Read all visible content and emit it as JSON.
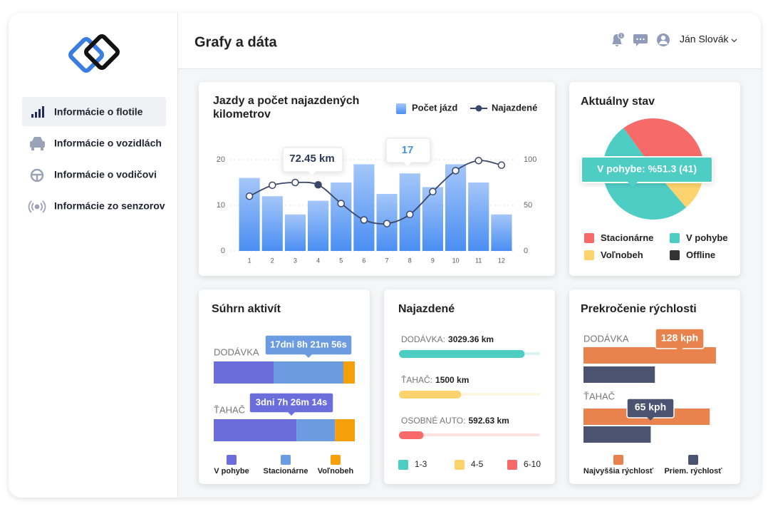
{
  "header": {
    "title": "Grafy a dáta",
    "user": "Ján Slovák",
    "notifications": 1
  },
  "sidebar": {
    "menu": [
      "Informácie o flotile",
      "Informácie o vozidlách",
      "Informácie o vodičovi",
      "Informácie zo senzorov"
    ]
  },
  "chart_data": [
    {
      "type": "bar",
      "title": "Jazdy a počet najazdených kilometrov",
      "categories": [
        "1",
        "2",
        "3",
        "4",
        "5",
        "6",
        "7",
        "8",
        "9",
        "10",
        "11",
        "12"
      ],
      "series": [
        {
          "name": "Počet jázd",
          "color": "#4a8ef2",
          "values": [
            16,
            12,
            8,
            11,
            15,
            19,
            12.5,
            17,
            14,
            19,
            15,
            8
          ]
        },
        {
          "name": "Najazdené",
          "type": "line",
          "axis": "y2",
          "color": "#3b4766",
          "values": [
            60,
            72,
            75,
            72.45,
            52,
            34,
            30,
            40,
            65,
            88,
            99,
            94
          ],
          "value_labels": [
            null,
            null,
            null,
            "72.45 km",
            null,
            null,
            null,
            null,
            null,
            null,
            null,
            null
          ]
        }
      ],
      "ylim": [
        0,
        20
      ],
      "yticks": [
        0,
        10,
        20
      ],
      "y2lim": [
        0,
        100
      ],
      "y2ticks": [
        0,
        50,
        100
      ],
      "grid": true
    },
    {
      "type": "pie",
      "title": "Aktuálny stav",
      "categories": [
        "Stacionárne",
        "V pohybe",
        "Voľnobeh",
        "Offline"
      ],
      "values": [
        28,
        41,
        10,
        1
      ],
      "value_labels": [
        null,
        "V pohybe: %51.3 (41)",
        null,
        null
      ],
      "colors": [
        "#f76a6a",
        "#4ecdc4",
        "#fdd36e",
        "#333333"
      ]
    },
    {
      "type": "bar",
      "orientation": "horizontal",
      "stack": "percent",
      "title": "Súhrn aktivít",
      "categories": [
        "DODÁVKA",
        "ŤAHAČ"
      ],
      "series": [
        {
          "name": "V pohybe",
          "color": "#6a6ddb",
          "values": [
            357,
            79.4372
          ],
          "value_labels": [
            null,
            "3dni 7h 26m 14s"
          ]
        },
        {
          "name": "Stacionárne",
          "color": "#6b9be0",
          "values": [
            416.3656,
            37
          ],
          "value_labels": [
            "17dni 8h 21m 56s",
            null
          ]
        },
        {
          "name": "Voľnobeh",
          "color": "#f59f0b",
          "values": [
            68,
            19
          ]
        }
      ]
    },
    {
      "type": "progress",
      "title": "Najazdené",
      "categories": [
        "DODÁVKA:",
        "ŤAHAČ:",
        "OSOBNÉ AUTO:"
      ],
      "values": [
        3029.36,
        1500,
        592.63
      ],
      "value_labels": [
        "3029.36 km",
        "1500 km",
        "592.63 km"
      ],
      "colors": [
        "#4ecdc4",
        "#fdd36e",
        "#f76a6a"
      ],
      "xlim": [
        0,
        3400
      ],
      "legend": [
        {
          "name": "1-3",
          "color": "#4ecdc4"
        },
        {
          "name": "4-5",
          "color": "#fdd36e"
        },
        {
          "name": "6-10",
          "color": "#f76a6a"
        }
      ]
    },
    {
      "type": "bar",
      "orientation": "horizontal",
      "title": "Prekročenie rýchlosti",
      "categories": [
        "DODÁVKA",
        "ŤAHAČ"
      ],
      "series": [
        {
          "name": "Najvyššia rýchlosť",
          "color": "#e8834e",
          "values": [
            128,
            122
          ],
          "value_labels": [
            "128 kph",
            null
          ]
        },
        {
          "name": "Priem. rýchlosť",
          "color": "#4a5470",
          "values": [
            69,
            65
          ],
          "value_labels": [
            null,
            "65 kph"
          ]
        }
      ],
      "xlim": [
        0,
        137
      ]
    }
  ]
}
